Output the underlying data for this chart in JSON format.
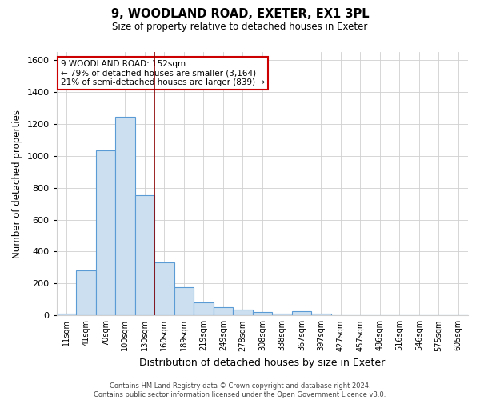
{
  "title": "9, WOODLAND ROAD, EXETER, EX1 3PL",
  "subtitle": "Size of property relative to detached houses in Exeter",
  "xlabel": "Distribution of detached houses by size in Exeter",
  "ylabel": "Number of detached properties",
  "bin_labels": [
    "11sqm",
    "41sqm",
    "70sqm",
    "100sqm",
    "130sqm",
    "160sqm",
    "189sqm",
    "219sqm",
    "249sqm",
    "278sqm",
    "308sqm",
    "338sqm",
    "367sqm",
    "397sqm",
    "427sqm",
    "457sqm",
    "486sqm",
    "516sqm",
    "546sqm",
    "575sqm",
    "605sqm"
  ],
  "bar_heights": [
    10,
    280,
    1035,
    1245,
    755,
    330,
    175,
    80,
    50,
    38,
    20,
    10,
    25,
    10,
    0,
    0,
    0,
    0,
    0,
    0,
    0
  ],
  "bar_color": "#ccdff0",
  "bar_edge_color": "#5b9bd5",
  "vline_x": 4.5,
  "vline_color": "#8b0000",
  "ylim": [
    0,
    1650
  ],
  "yticks": [
    0,
    200,
    400,
    600,
    800,
    1000,
    1200,
    1400,
    1600
  ],
  "annotation_title": "9 WOODLAND ROAD: 152sqm",
  "annotation_line1": "← 79% of detached houses are smaller (3,164)",
  "annotation_line2": "21% of semi-detached houses are larger (839) →",
  "annotation_box_color": "#ffffff",
  "annotation_box_edge": "#cc0000",
  "footer_line1": "Contains HM Land Registry data © Crown copyright and database right 2024.",
  "footer_line2": "Contains public sector information licensed under the Open Government Licence v3.0.",
  "background_color": "#ffffff",
  "grid_color": "#d0d0d0"
}
